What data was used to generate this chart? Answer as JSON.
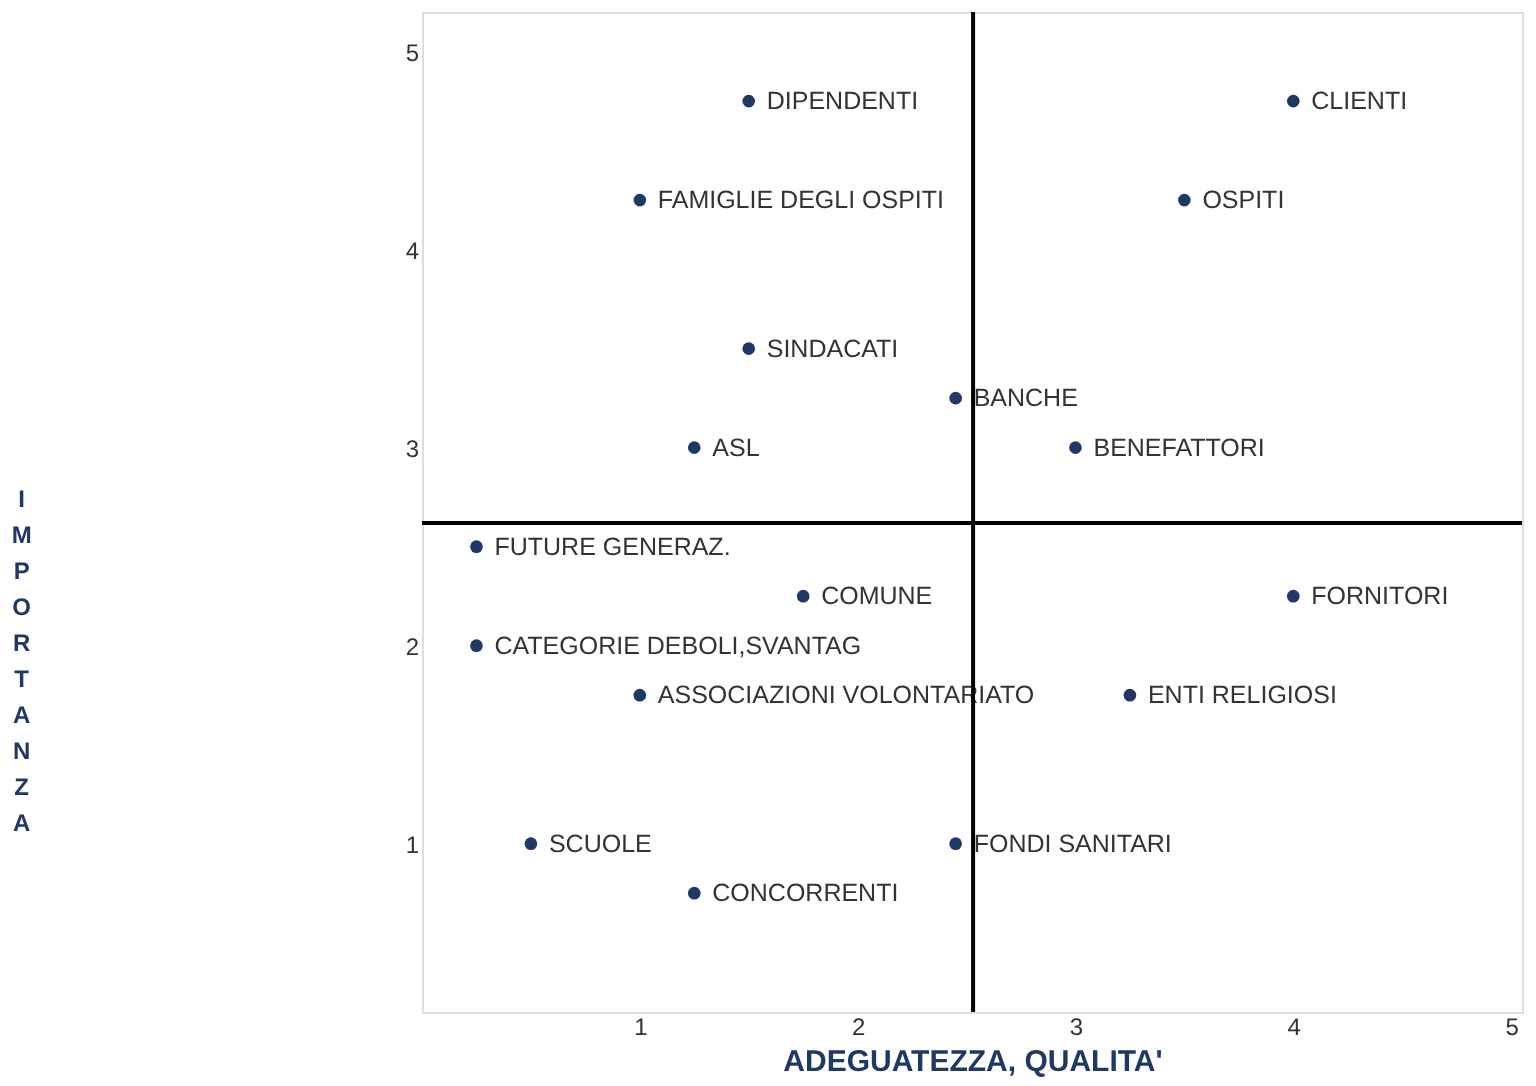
{
  "chart_data": {
    "type": "scatter",
    "xlabel": "ADEGUATEZZA, QUALITA'",
    "ylabel": "IMPORTANZA",
    "xlim": [
      0,
      5.05
    ],
    "ylim": [
      0.15,
      5.2
    ],
    "xticks": [
      1,
      2,
      3,
      4,
      5
    ],
    "yticks": [
      1,
      2,
      3,
      4,
      5
    ],
    "grid": false,
    "marker": "circle",
    "series": [
      {
        "color": "#1f3864",
        "x": [
          1.5,
          1,
          4,
          3.5,
          1.5,
          2.45,
          1.25,
          3,
          0.25,
          1.75,
          4,
          0.25,
          1,
          3.25,
          0.5,
          2.45,
          1.25
        ],
        "values": [
          4.75,
          4.25,
          4.75,
          4.25,
          3.5,
          3.25,
          3,
          3,
          2.5,
          2.25,
          2.25,
          2,
          1.75,
          1.75,
          1,
          1,
          0.75
        ],
        "value_labels": [
          "DIPENDENTI",
          "FAMIGLIE DEGLI OSPITI",
          "CLIENTI",
          "OSPITI",
          "SINDACATI",
          "BANCHE",
          "ASL",
          "BENEFATTORI",
          "FUTURE GENERAZ.",
          "COMUNE",
          "FORNITORI",
          "CATEGORIE DEBOLI,SVANTAG",
          "ASSOCIAZIONI VOLONTARIATO",
          "ENTI RELIGIOSI",
          "SCUOLE",
          "FONDI SANITARI",
          "CONCORRENTI"
        ]
      }
    ],
    "ref_lines": [
      {
        "axis": "x",
        "value": 2.53,
        "color": "#000000"
      },
      {
        "axis": "y",
        "value": 2.62,
        "color": "#000000"
      }
    ]
  }
}
